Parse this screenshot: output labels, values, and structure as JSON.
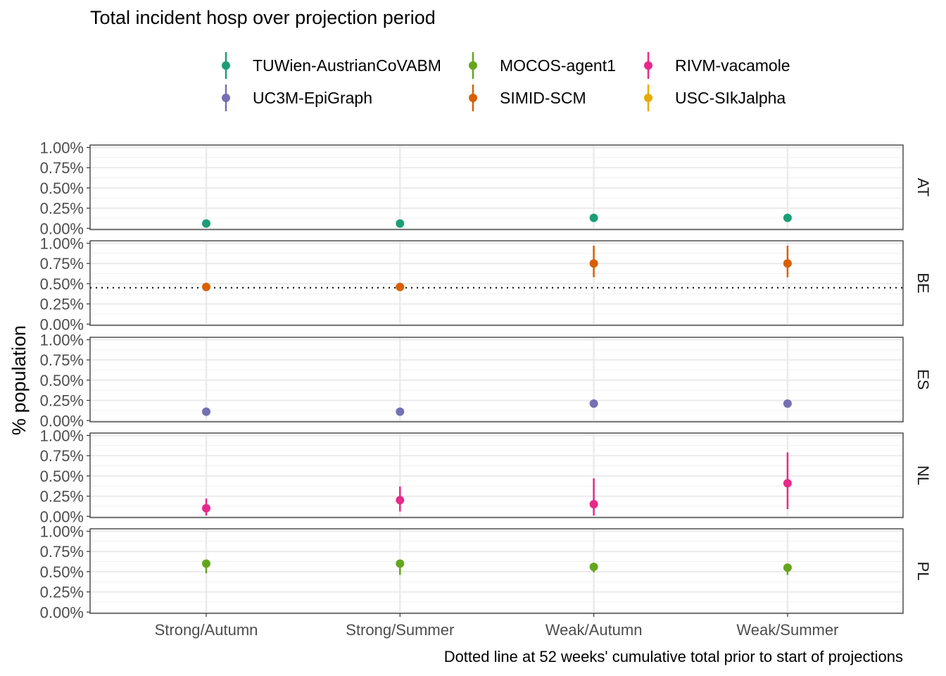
{
  "chart_data": {
    "type": "pointrange",
    "title": "Total incident hosp over projection period",
    "ylabel": "% population",
    "xlabel": "",
    "caption": "Dotted line at 52 weeks' cumulative total prior to start of projections",
    "categories": [
      "Strong/Autumn",
      "Strong/Summer",
      "Weak/Autumn",
      "Weak/Summer"
    ],
    "ylim": [
      0,
      1.0
    ],
    "y_ticks": [
      "0.00%",
      "0.25%",
      "0.50%",
      "0.75%",
      "1.00%"
    ],
    "y_tick_values": [
      0,
      0.25,
      0.5,
      0.75,
      1.0
    ],
    "grid": true,
    "legend_position": "top",
    "legend": [
      {
        "name": "TUWien-AustrianCoVABM",
        "color": "#1b9e77"
      },
      {
        "name": "UC3M-EpiGraph",
        "color": "#7570b3"
      },
      {
        "name": "MOCOS-agent1",
        "color": "#66a61e"
      },
      {
        "name": "SIMID-SCM",
        "color": "#d95f02"
      },
      {
        "name": "RIVM-vacamole",
        "color": "#e7298a"
      },
      {
        "name": "USC-SIkJalpha",
        "color": "#e6ab02"
      }
    ],
    "panels": [
      {
        "label": "AT",
        "series": [
          {
            "name": "TUWien-AustrianCoVABM",
            "color": "#1b9e77",
            "values": [
              0.06,
              0.06,
              0.13,
              0.13
            ],
            "lower": [
              0.05,
              0.05,
              0.12,
              0.12
            ],
            "upper": [
              0.07,
              0.07,
              0.14,
              0.14
            ]
          }
        ]
      },
      {
        "label": "BE",
        "reference": 0.45,
        "series": [
          {
            "name": "SIMID-SCM",
            "color": "#d95f02",
            "values": [
              0.46,
              0.46,
              0.75,
              0.75
            ],
            "lower": [
              0.41,
              0.41,
              0.58,
              0.58
            ],
            "upper": [
              0.51,
              0.51,
              0.97,
              0.97
            ]
          }
        ]
      },
      {
        "label": "ES",
        "series": [
          {
            "name": "UC3M-EpiGraph",
            "color": "#7570b3",
            "values": [
              0.11,
              0.11,
              0.21,
              0.21
            ],
            "lower": [
              0.1,
              0.1,
              0.2,
              0.2
            ],
            "upper": [
              0.12,
              0.12,
              0.22,
              0.22
            ]
          }
        ]
      },
      {
        "label": "NL",
        "series": [
          {
            "name": "RIVM-vacamole",
            "color": "#e7298a",
            "values": [
              0.1,
              0.2,
              0.15,
              0.41
            ],
            "lower": [
              0.01,
              0.06,
              0.01,
              0.09
            ],
            "upper": [
              0.22,
              0.37,
              0.47,
              0.79
            ]
          }
        ]
      },
      {
        "label": "PL",
        "series": [
          {
            "name": "MOCOS-agent1",
            "color": "#66a61e",
            "values": [
              0.6,
              0.6,
              0.56,
              0.55
            ],
            "lower": [
              0.48,
              0.46,
              0.49,
              0.46
            ],
            "upper": [
              0.61,
              0.61,
              0.57,
              0.56
            ]
          }
        ]
      }
    ]
  }
}
